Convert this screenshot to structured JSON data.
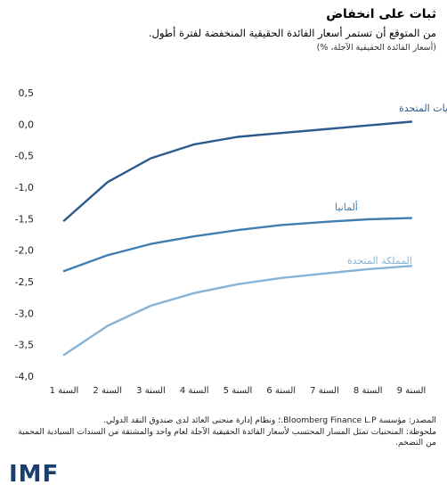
{
  "header": {
    "title": "ثبات على انخفاض",
    "subtitle": "من المتوقع أن تستمر أسعار الفائدة الحقيقية المنخفضة لفترة أطول.",
    "units": "(أسعار الفائدة الحقيقية الآجلة، %)"
  },
  "notes": {
    "source": "المصدر: مؤسسة Bloomberg Finance L.P.؛ ونظام إدارة منحنى العائد لدى صندوق النقد الدولي.",
    "note": "ملحوظة: المنحنيات تمثل المسار المحتسب لأسعار الفائدة الحقيقية الآجلة لعام واحد والمشتقة من السندات السيادية المحمية من التضخم."
  },
  "logo": {
    "text": "IMF"
  },
  "chart_data": {
    "type": "line",
    "categories": [
      "السنة 1",
      "السنة 2",
      "السنة 3",
      "السنة 4",
      "السنة 5",
      "السنة 6",
      "السنة 7",
      "السنة 8",
      "السنة 9"
    ],
    "y_ticks": [
      0.5,
      0.0,
      -0.5,
      -1.0,
      -1.5,
      -2.0,
      -2.5,
      -3.0,
      -3.5,
      -4.0
    ],
    "y_tick_labels": [
      "0,5",
      "0,0",
      "-0,5",
      "-1,0",
      "-1,5",
      "-2,0",
      "-2,5",
      "-3,0",
      "-3,5",
      "-4,0"
    ],
    "ylim": [
      -4.0,
      0.5
    ],
    "grid": false,
    "series": [
      {
        "name": "الولايات المتحدة",
        "color": "#2b5a8c",
        "values": [
          -1.53,
          -0.92,
          -0.54,
          -0.32,
          -0.2,
          -0.14,
          -0.08,
          -0.02,
          0.04
        ]
      },
      {
        "name": "ألمانيا",
        "color": "#3f7eb2",
        "values": [
          -2.33,
          -2.08,
          -1.9,
          -1.78,
          -1.68,
          -1.6,
          -1.55,
          -1.51,
          -1.49
        ]
      },
      {
        "name": "المملكة المتحدة",
        "color": "#86b3d6",
        "values": [
          -3.66,
          -3.2,
          -2.88,
          -2.68,
          -2.54,
          -2.44,
          -2.37,
          -2.3,
          -2.25
        ]
      }
    ]
  }
}
